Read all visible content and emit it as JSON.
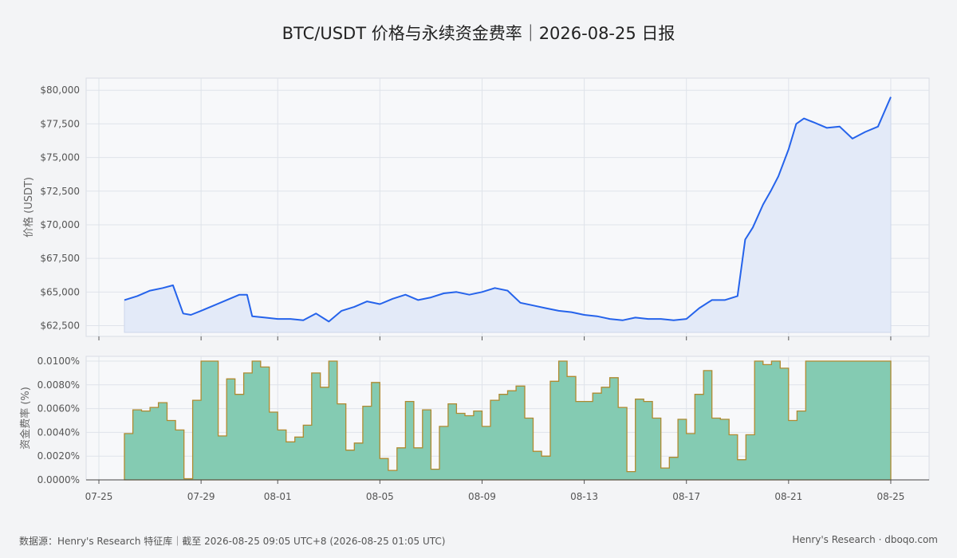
{
  "page": {
    "title": "BTC/USDT 价格与永续资金费率｜2026-08-25 日报",
    "footer_left": "数据源：Henry's Research 特征库｜截至 2026-08-25 09:05 UTC+8 (2026-08-25 01:05 UTC)",
    "footer_right": "Henry's Research · dboqo.com"
  },
  "colors": {
    "price_line": "#2563eb",
    "price_fill": "#e3eaf8",
    "funding_fill": "#84cbb2",
    "funding_edge": "#b08a30",
    "grid": "#dfe3ea",
    "plot_bg": "#f7f8fa"
  },
  "chart_data": [
    {
      "type": "line",
      "title": "",
      "xlabel": "",
      "ylabel": "价格 (USDT)",
      "x_ticks": [
        "07-25",
        "07-29",
        "08-01",
        "08-05",
        "08-09",
        "08-13",
        "08-17",
        "08-21",
        "08-25"
      ],
      "x_tick_days": [
        0,
        4,
        7,
        11,
        15,
        19,
        23,
        27,
        31
      ],
      "xlim_days": [
        -0.5,
        32.5
      ],
      "y_ticks": [
        "$62,500",
        "$65,000",
        "$67,500",
        "$70,000",
        "$72,500",
        "$75,000",
        "$77,500",
        "$80,000"
      ],
      "y_tick_values": [
        62500,
        65000,
        67500,
        70000,
        72500,
        75000,
        77500,
        80000
      ],
      "ylim": [
        61700,
        80900
      ],
      "grid": true,
      "series": [
        {
          "name": "",
          "x": [
            1,
            1.5,
            2,
            2.5,
            2.9,
            3.3,
            3.6,
            4,
            4.5,
            5,
            5.5,
            5.8,
            6,
            6.5,
            7,
            7.5,
            8,
            8.5,
            9,
            9.5,
            10,
            10.5,
            11,
            11.5,
            12,
            12.5,
            13,
            13.5,
            14,
            14.5,
            15,
            15.5,
            16,
            16.5,
            17,
            17.5,
            18,
            18.5,
            19,
            19.5,
            20,
            20.5,
            21,
            21.5,
            22,
            22.5,
            23,
            23.5,
            24,
            24.5,
            25,
            25.3,
            25.6,
            26,
            26.3,
            26.6,
            27,
            27.3,
            27.6,
            28,
            28.5,
            29,
            29.5,
            30,
            30.5,
            31
          ],
          "values": [
            64400,
            64700,
            65100,
            65300,
            65500,
            63400,
            63300,
            63600,
            64000,
            64400,
            64800,
            64800,
            63200,
            63100,
            63000,
            63000,
            62900,
            63400,
            62800,
            63600,
            63900,
            64300,
            64100,
            64500,
            64800,
            64400,
            64600,
            64900,
            65000,
            64800,
            65000,
            65300,
            65100,
            64200,
            64000,
            63800,
            63600,
            63500,
            63300,
            63200,
            63000,
            62900,
            63100,
            63000,
            63000,
            62900,
            63000,
            63800,
            64400,
            64400,
            64700,
            68900,
            69800,
            71500,
            72500,
            73600,
            75600,
            77500,
            77900,
            77600,
            77200,
            77300,
            76400,
            76900,
            77300,
            79500
          ]
        }
      ]
    },
    {
      "type": "area",
      "title": "",
      "xlabel": "",
      "ylabel": "资金费率 (%)",
      "x_ticks": [
        "07-25",
        "07-29",
        "08-01",
        "08-05",
        "08-09",
        "08-13",
        "08-17",
        "08-21",
        "08-25"
      ],
      "y_ticks": [
        "0.0000%",
        "0.0020%",
        "0.0040%",
        "0.0060%",
        "0.0080%",
        "0.0100%"
      ],
      "y_tick_values": [
        0,
        0.002,
        0.004,
        0.006,
        0.008,
        0.01
      ],
      "ylim": [
        0,
        0.0104
      ],
      "grid": true,
      "series": [
        {
          "name": "",
          "step": "post",
          "x": [
            1,
            1.33,
            1.67,
            2,
            2.33,
            2.67,
            3,
            3.33,
            3.67,
            4,
            4.33,
            4.67,
            5,
            5.33,
            5.67,
            6,
            6.33,
            6.67,
            7,
            7.33,
            7.67,
            8,
            8.33,
            8.67,
            9,
            9.33,
            9.67,
            10,
            10.33,
            10.67,
            11,
            11.33,
            11.67,
            12,
            12.33,
            12.67,
            13,
            13.33,
            13.67,
            14,
            14.33,
            14.67,
            15,
            15.33,
            15.67,
            16,
            16.33,
            16.67,
            17,
            17.33,
            17.67,
            18,
            18.33,
            18.67,
            19,
            19.33,
            19.67,
            20,
            20.33,
            20.67,
            21,
            21.33,
            21.67,
            22,
            22.33,
            22.67,
            23,
            23.33,
            23.67,
            24,
            24.33,
            24.67,
            25,
            25.33,
            25.67,
            26,
            26.33,
            26.67,
            27,
            27.33,
            27.67,
            28,
            28.33,
            28.67,
            29,
            29.33,
            29.67,
            30,
            30.33,
            30.67,
            31
          ],
          "values": [
            0.0039,
            0.0059,
            0.0058,
            0.0061,
            0.0065,
            0.005,
            0.0042,
            0.0001,
            0.0067,
            0.01,
            0.01,
            0.0037,
            0.0085,
            0.0072,
            0.009,
            0.01,
            0.0095,
            0.0057,
            0.0042,
            0.0032,
            0.0036,
            0.0046,
            0.009,
            0.0078,
            0.01,
            0.0064,
            0.0025,
            0.0031,
            0.0062,
            0.0082,
            0.0018,
            0.0008,
            0.0027,
            0.0066,
            0.0027,
            0.0059,
            0.0009,
            0.0045,
            0.0064,
            0.0056,
            0.0054,
            0.0058,
            0.0045,
            0.0067,
            0.0072,
            0.0075,
            0.0079,
            0.0052,
            0.0024,
            0.002,
            0.0083,
            0.01,
            0.0087,
            0.0066,
            0.0066,
            0.0073,
            0.0078,
            0.0086,
            0.0061,
            0.0007,
            0.0068,
            0.0066,
            0.0052,
            0.001,
            0.0019,
            0.0051,
            0.0039,
            0.0072,
            0.0092,
            0.0052,
            0.0051,
            0.0038,
            0.0017,
            0.0038,
            0.01,
            0.0097,
            0.01,
            0.0094,
            0.005,
            0.0058,
            0.01,
            0.01,
            0.01,
            0.01,
            0.01,
            0.01,
            0.01,
            0.01,
            0.01,
            0.01,
            0.0058
          ]
        }
      ]
    }
  ]
}
